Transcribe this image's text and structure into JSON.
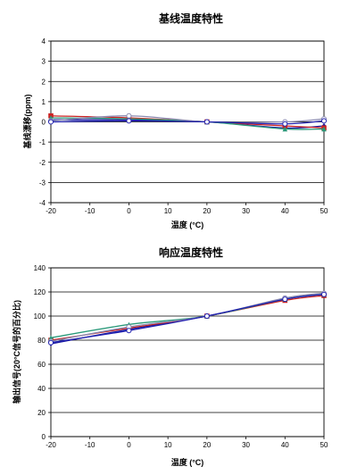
{
  "chart_data": [
    {
      "type": "line",
      "title": "基线温度特性",
      "xlabel": "温度 (°C)",
      "ylabel": "基线漂移(ppm)",
      "x": [
        -20,
        0,
        20,
        40,
        50
      ],
      "xlim": [
        -20,
        50
      ],
      "ylim": [
        -4,
        4
      ],
      "xticks": [
        -20,
        -10,
        0,
        10,
        20,
        30,
        40,
        50
      ],
      "yticks": [
        -4,
        -3,
        -2,
        -1,
        0,
        1,
        2,
        3,
        4
      ],
      "grid": "horizontal",
      "legend": "none",
      "series": [
        {
          "color": "#1a1aa0",
          "marker": "diamond",
          "values": [
            0.1,
            0.1,
            0.0,
            -0.3,
            -0.2
          ]
        },
        {
          "color": "#cc2222",
          "marker": "square",
          "values": [
            0.3,
            0.2,
            0.0,
            -0.2,
            -0.3
          ]
        },
        {
          "color": "#2a9a7a",
          "marker": "triangle",
          "values": [
            0.2,
            0.15,
            0.0,
            -0.35,
            -0.35
          ]
        },
        {
          "color": "#8a8ab0",
          "marker": "circle",
          "values": [
            0.05,
            0.3,
            0.0,
            0.0,
            0.15
          ]
        },
        {
          "color": "#2020b0",
          "marker": "circle",
          "values": [
            0.0,
            0.05,
            0.0,
            -0.1,
            0.05
          ]
        }
      ]
    },
    {
      "type": "line",
      "title": "响应温度特性",
      "xlabel": "温度 (°C)",
      "ylabel": "输出信号(20°C信号的百分比)",
      "x": [
        -20,
        0,
        20,
        40,
        50
      ],
      "xlim": [
        -20,
        50
      ],
      "ylim": [
        0,
        140
      ],
      "xticks": [
        -20,
        -10,
        0,
        10,
        20,
        30,
        40,
        50
      ],
      "yticks": [
        0,
        20,
        40,
        60,
        80,
        100,
        120,
        140
      ],
      "grid": "horizontal",
      "legend": "none",
      "series": [
        {
          "color": "#1a1aa0",
          "marker": "diamond",
          "values": [
            77,
            89,
            100,
            114,
            119
          ]
        },
        {
          "color": "#cc2222",
          "marker": "square",
          "values": [
            80,
            90,
            100,
            113,
            117
          ]
        },
        {
          "color": "#2a9a7a",
          "marker": "triangle",
          "values": [
            82,
            93,
            100,
            114,
            118
          ]
        },
        {
          "color": "#8a8ab0",
          "marker": "circle",
          "values": [
            79,
            91,
            100,
            115,
            119
          ]
        },
        {
          "color": "#2020b0",
          "marker": "circle",
          "values": [
            78,
            88,
            100,
            114,
            118
          ]
        }
      ]
    }
  ]
}
